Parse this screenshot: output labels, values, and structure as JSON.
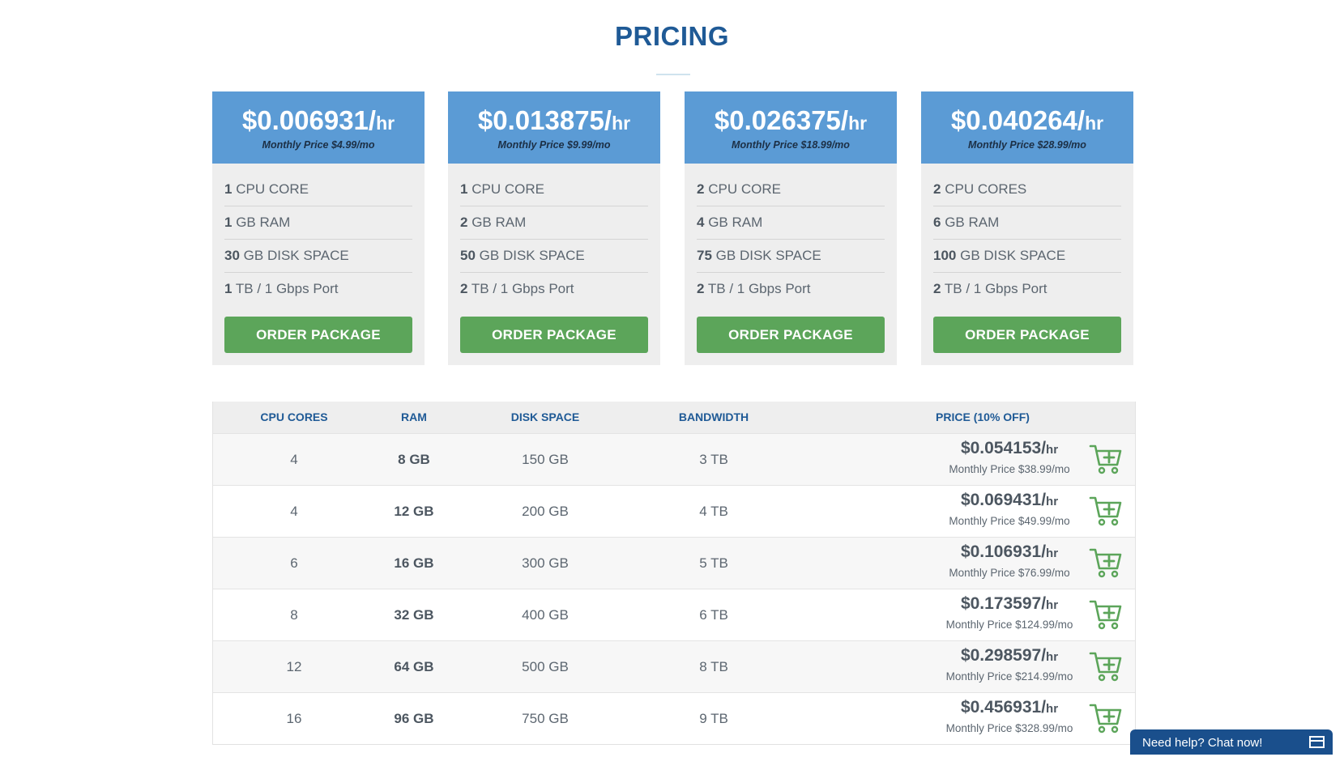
{
  "page": {
    "title": "PRICING"
  },
  "colors": {
    "accent": "#5b9bd5",
    "brand": "#1f5a96",
    "order_button": "#5ca55a",
    "cart": "#5ca55a"
  },
  "cards": [
    {
      "price": "$0.006931/",
      "unit": "hr",
      "monthly": "Monthly Price $4.99/mo",
      "features": [
        {
          "value": "1",
          "label": "CPU CORE"
        },
        {
          "value": "1",
          "label": "GB RAM"
        },
        {
          "value": "30",
          "label": "GB DISK SPACE"
        },
        {
          "value": "1",
          "label": "TB / 1 Gbps Port"
        }
      ],
      "button": "ORDER PACKAGE"
    },
    {
      "price": "$0.013875/",
      "unit": "hr",
      "monthly": "Monthly Price $9.99/mo",
      "features": [
        {
          "value": "1",
          "label": "CPU CORE"
        },
        {
          "value": "2",
          "label": "GB RAM"
        },
        {
          "value": "50",
          "label": "GB DISK SPACE"
        },
        {
          "value": "2",
          "label": "TB / 1 Gbps Port"
        }
      ],
      "button": "ORDER PACKAGE"
    },
    {
      "price": "$0.026375/",
      "unit": "hr",
      "monthly": "Monthly Price $18.99/mo",
      "features": [
        {
          "value": "2",
          "label": "CPU CORE"
        },
        {
          "value": "4",
          "label": "GB RAM"
        },
        {
          "value": "75",
          "label": "GB DISK SPACE"
        },
        {
          "value": "2",
          "label": "TB / 1 Gbps Port"
        }
      ],
      "button": "ORDER PACKAGE"
    },
    {
      "price": "$0.040264/",
      "unit": "hr",
      "monthly": "Monthly Price $28.99/mo",
      "features": [
        {
          "value": "2",
          "label": "CPU CORES"
        },
        {
          "value": "6",
          "label": "GB RAM"
        },
        {
          "value": "100",
          "label": "GB DISK SPACE"
        },
        {
          "value": "2",
          "label": "TB / 1 Gbps Port"
        }
      ],
      "button": "ORDER PACKAGE"
    }
  ],
  "table": {
    "headers": {
      "cpu": "CPU CORES",
      "ram": "RAM",
      "disk": "DISK SPACE",
      "bandwidth": "BANDWIDTH",
      "price": "PRICE (10% OFF)"
    },
    "rows": [
      {
        "cpu": "4",
        "ram": "8 GB",
        "disk": "150 GB",
        "bandwidth": "3 TB",
        "price": "$0.054153/",
        "unit": "hr",
        "monthly": "Monthly Price $38.99/mo",
        "icon": "cart-add-icon"
      },
      {
        "cpu": "4",
        "ram": "12 GB",
        "disk": "200 GB",
        "bandwidth": "4 TB",
        "price": "$0.069431/",
        "unit": "hr",
        "monthly": "Monthly Price $49.99/mo",
        "icon": "cart-add-icon"
      },
      {
        "cpu": "6",
        "ram": "16 GB",
        "disk": "300 GB",
        "bandwidth": "5 TB",
        "price": "$0.106931/",
        "unit": "hr",
        "monthly": "Monthly Price $76.99/mo",
        "icon": "cart-add-icon"
      },
      {
        "cpu": "8",
        "ram": "32 GB",
        "disk": "400 GB",
        "bandwidth": "6 TB",
        "price": "$0.173597/",
        "unit": "hr",
        "monthly": "Monthly Price $124.99/mo",
        "icon": "cart-add-icon"
      },
      {
        "cpu": "12",
        "ram": "64 GB",
        "disk": "500 GB",
        "bandwidth": "8 TB",
        "price": "$0.298597/",
        "unit": "hr",
        "monthly": "Monthly Price $214.99/mo",
        "icon": "cart-add-icon"
      },
      {
        "cpu": "16",
        "ram": "96 GB",
        "disk": "750 GB",
        "bandwidth": "9 TB",
        "price": "$0.456931/",
        "unit": "hr",
        "monthly": "Monthly Price $328.99/mo",
        "icon": "cart-add-icon"
      }
    ]
  },
  "chat": {
    "label": "Need help? Chat now!",
    "icon": "chat-window-icon"
  }
}
